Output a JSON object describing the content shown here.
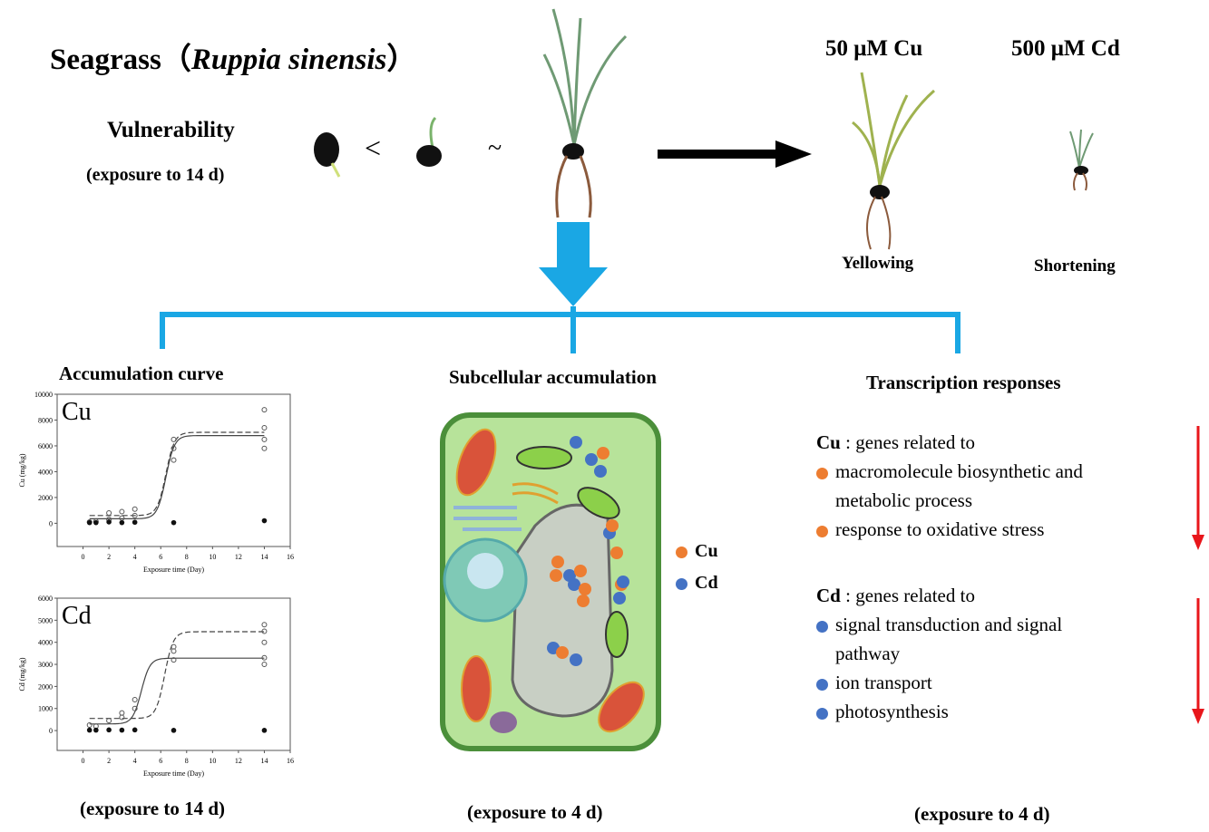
{
  "title": {
    "prefix": "Seagrass（",
    "species": "Ruppia sinensis",
    "suffix": "）"
  },
  "vulnerability": {
    "label": "Vulnerability",
    "exposure": "(exposure to 14 d)",
    "lt": "<",
    "approx": "~"
  },
  "treatments": {
    "cu": "50 μM Cu",
    "cd": "500 μM Cd",
    "cu_effect": "Yellowing",
    "cd_effect": "Shortening"
  },
  "sections": {
    "accumulation": {
      "title": "Accumulation curve",
      "exposure": "(exposure to 14 d)"
    },
    "subcellular": {
      "title": "Subcellular accumulation",
      "exposure": "(exposure to 4 d)",
      "legend": [
        {
          "label": "Cu",
          "color": "#ed7d31"
        },
        {
          "label": "Cd",
          "color": "#4472c4"
        }
      ]
    },
    "transcription": {
      "title": "Transcription responses",
      "exposure": "(exposure to 4 d)",
      "cu": {
        "head": "Cu",
        "rest": " : genes related to",
        "items": [
          "macromolecule biosynthetic and",
          "metabolic process",
          "response to oxidative stress"
        ]
      },
      "cd": {
        "head": "Cd",
        "rest": " : genes related to",
        "items": [
          "signal transduction and signal",
          "pathway",
          "ion transport",
          "photosynthesis"
        ]
      }
    }
  },
  "colors": {
    "accent_blue": "#1aa7e4",
    "down_arrow": "#e8161b",
    "cu": "#ed7d31",
    "cd": "#4472c4"
  },
  "chart_data": [
    {
      "type": "scatter",
      "label": "Cu",
      "xlabel": "Exposure time (Day)",
      "ylabel": "Cu (mg/kg)",
      "xlim": [
        -2,
        16
      ],
      "ylim": [
        -1800,
        10000
      ],
      "xticks": [
        0,
        2,
        4,
        6,
        8,
        10,
        12,
        14,
        16
      ],
      "yticks": [
        0,
        2000,
        4000,
        6000,
        8000,
        10000
      ],
      "points": [
        [
          0.5,
          100
        ],
        [
          1,
          150
        ],
        [
          2,
          800
        ],
        [
          2,
          300
        ],
        [
          3,
          900
        ],
        [
          3,
          400
        ],
        [
          4,
          1100
        ],
        [
          4,
          600
        ],
        [
          7,
          6500
        ],
        [
          7,
          5800
        ],
        [
          7,
          4900
        ],
        [
          14,
          8800
        ],
        [
          14,
          7400
        ],
        [
          14,
          6500
        ],
        [
          14,
          5800
        ]
      ],
      "control": [
        [
          0.5,
          50
        ],
        [
          1,
          50
        ],
        [
          2,
          100
        ],
        [
          3,
          50
        ],
        [
          4,
          80
        ],
        [
          7,
          50
        ],
        [
          14,
          200
        ]
      ],
      "curves": [
        {
          "style": "solid",
          "low": 350,
          "high": 6800,
          "mid": 6.4
        },
        {
          "style": "dashed",
          "low": 600,
          "high": 7050,
          "mid": 6.4
        }
      ]
    },
    {
      "type": "scatter",
      "label": "Cd",
      "xlabel": "Exposure time (Day)",
      "ylabel": "Cd (mg/kg)",
      "xlim": [
        -2,
        16
      ],
      "ylim": [
        -900,
        6000
      ],
      "xticks": [
        0,
        2,
        4,
        6,
        8,
        10,
        12,
        14,
        16
      ],
      "yticks": [
        0,
        1000,
        2000,
        3000,
        4000,
        5000,
        6000
      ],
      "points": [
        [
          0.5,
          250
        ],
        [
          1,
          200
        ],
        [
          2,
          450
        ],
        [
          3,
          800
        ],
        [
          3,
          600
        ],
        [
          4,
          1400
        ],
        [
          4,
          1000
        ],
        [
          7,
          3800
        ],
        [
          7,
          3600
        ],
        [
          7,
          3200
        ],
        [
          14,
          4800
        ],
        [
          14,
          4500
        ],
        [
          14,
          4000
        ],
        [
          14,
          3300
        ],
        [
          14,
          3000
        ]
      ],
      "control": [
        [
          0.5,
          20
        ],
        [
          1,
          20
        ],
        [
          2,
          30
        ],
        [
          3,
          20
        ],
        [
          4,
          30
        ],
        [
          7,
          10
        ],
        [
          14,
          10
        ]
      ],
      "curves": [
        {
          "style": "solid",
          "low": 300,
          "high": 3280,
          "mid": 4.5
        },
        {
          "style": "dashed",
          "low": 550,
          "high": 4480,
          "mid": 6.3
        }
      ]
    }
  ]
}
